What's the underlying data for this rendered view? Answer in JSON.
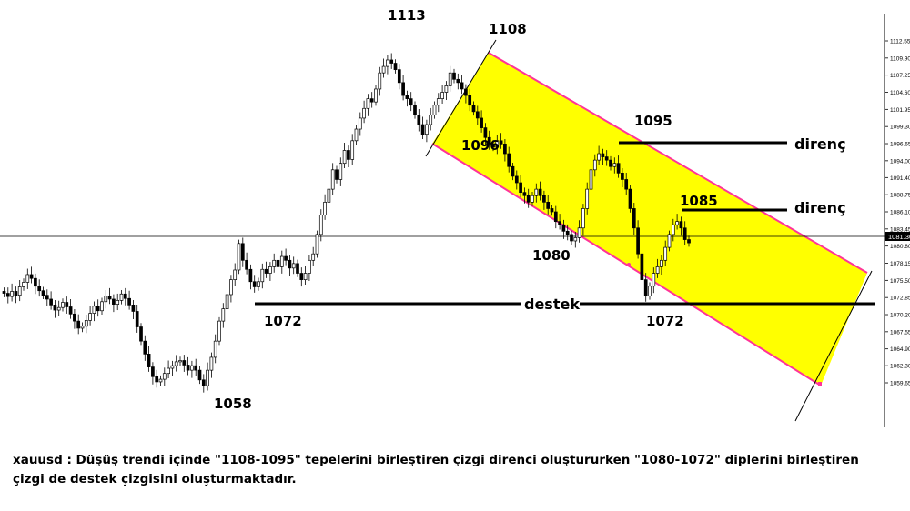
{
  "chart_data": {
    "type": "candlestick",
    "symbol": "xauusd",
    "price_axis_ticks": [
      "1112.55",
      "1109.90",
      "1107.25",
      "1104.60",
      "1101.95",
      "1099.30",
      "1096.65",
      "1094.00",
      "1091.40",
      "1088.75",
      "1086.10",
      "1083.45",
      "1080.80",
      "1078.15",
      "1075.50",
      "1072.85",
      "1070.20",
      "1067.55",
      "1064.90",
      "1062.30",
      "1059.65"
    ],
    "current_price_label": "1081.30",
    "ylim": [
      1057,
      1114
    ],
    "series_close": [
      1073.5,
      1073,
      1073.8,
      1073.2,
      1074.5,
      1075.2,
      1076.4,
      1075.8,
      1074.6,
      1073.9,
      1073.2,
      1072.6,
      1071.7,
      1070.9,
      1071.3,
      1072.1,
      1071.4,
      1070.3,
      1069.2,
      1068.1,
      1068.4,
      1069.3,
      1070.4,
      1071.5,
      1070.8,
      1072.2,
      1073.1,
      1072.6,
      1071.8,
      1072.4,
      1073.4,
      1072.7,
      1071.7,
      1070.7,
      1068.3,
      1066.1,
      1064.1,
      1062.1,
      1060.6,
      1059.8,
      1060.2,
      1061.1,
      1061.9,
      1062.3,
      1062.9,
      1063.1,
      1062.4,
      1061.6,
      1062.3,
      1061.6,
      1060.1,
      1059.2,
      1061.6,
      1063.6,
      1066.1,
      1069.2,
      1071.1,
      1073.3,
      1075.6,
      1077.1,
      1081.2,
      1078.6,
      1077.2,
      1075.3,
      1074.5,
      1075.3,
      1077.2,
      1076.6,
      1077.6,
      1078.6,
      1077.6,
      1079.2,
      1078.6,
      1077.4,
      1078.1,
      1076.6,
      1075.6,
      1076.6,
      1078.6,
      1079.6,
      1082.6,
      1085.6,
      1087.6,
      1089.6,
      1092.6,
      1091.1,
      1093.6,
      1095.6,
      1094.2,
      1097.1,
      1098.9,
      1100.6,
      1102.1,
      1103.6,
      1103.1,
      1105.1,
      1107.6,
      1108.6,
      1109.6,
      1109.1,
      1108.1,
      1106.1,
      1104.1,
      1103.6,
      1102.6,
      1101.1,
      1099.6,
      1098.1,
      1099.6,
      1101.1,
      1102.6,
      1103.6,
      1104.6,
      1105.6,
      1107.6,
      1106.6,
      1106.1,
      1105.1,
      1104.1,
      1102.6,
      1101.6,
      1100.6,
      1099.1,
      1097.6,
      1096.6,
      1096.1,
      1097.1,
      1096.6,
      1095.1,
      1093.1,
      1091.6,
      1090.6,
      1089.1,
      1088.6,
      1087.6,
      1088.6,
      1089.6,
      1088.6,
      1087.6,
      1086.6,
      1086.1,
      1084.6,
      1084.1,
      1083.1,
      1082.6,
      1081.6,
      1082.1,
      1083.6,
      1086.6,
      1089.6,
      1092.6,
      1094.1,
      1095.1,
      1094.6,
      1094.1,
      1093.1,
      1093.6,
      1092.1,
      1091.1,
      1089.6,
      1086.6,
      1083.6,
      1079.6,
      1075.6,
      1073.1,
      1074.6,
      1076.6,
      1077.6,
      1078.6,
      1080.6,
      1082.6,
      1084.1,
      1084.6,
      1083.6,
      1081.8,
      1081.3
    ],
    "annotations": {
      "price_labels": [
        "1113",
        "1108",
        "1096",
        "1095",
        "1085",
        "1080",
        "1072",
        "1072",
        "1058"
      ],
      "line_labels": [
        "direnç",
        "direnç",
        "destek"
      ]
    },
    "channel": {
      "upper_line": [
        [
          1108,
          1062.8
        ],
        [
          -50,
          1066.9
        ]
      ],
      "note": "descending price channel"
    }
  },
  "caption": "xauusd : Düşüş trendi içinde \"1108-1095\" tepelerini birleştiren çizgi direnci oluştururken \"1080-1072\" diplerini birleştiren çizgi de destek çizgisini oluşturmaktadır."
}
